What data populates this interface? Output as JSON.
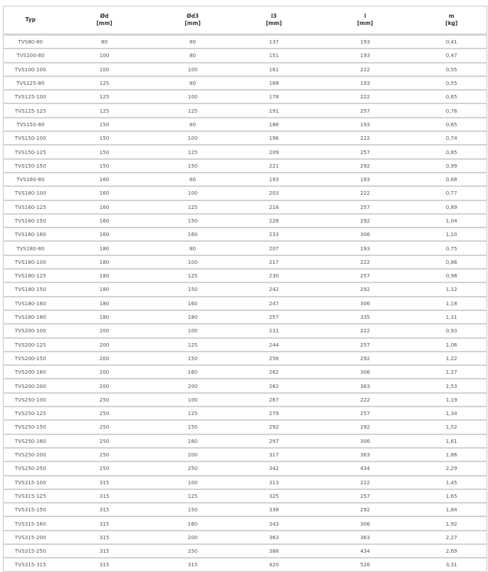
{
  "table": {
    "headers": [
      {
        "name": "Typ",
        "unit": ""
      },
      {
        "name": "Ød",
        "unit": "[mm]"
      },
      {
        "name": "Ød3",
        "unit": "[mm]"
      },
      {
        "name": "l3",
        "unit": "[mm]"
      },
      {
        "name": "l",
        "unit": "[mm]"
      },
      {
        "name": "m",
        "unit": "[kg]"
      }
    ],
    "rows": [
      [
        "TVS80-80",
        "80",
        "80",
        "137",
        "193",
        "0,41"
      ],
      [
        "TVS100-80",
        "100",
        "80",
        "151",
        "193",
        "0,47"
      ],
      [
        "TVS100-100",
        "100",
        "100",
        "161",
        "222",
        "0,55"
      ],
      [
        "TVS125-80",
        "125",
        "80",
        "168",
        "193",
        "0,55"
      ],
      [
        "TVS125-100",
        "125",
        "100",
        "178",
        "222",
        "0,65"
      ],
      [
        "TVS125-125",
        "125",
        "125",
        "191",
        "257",
        "0,76"
      ],
      [
        "TVS150-80",
        "150",
        "80",
        "186",
        "193",
        "0,65"
      ],
      [
        "TVS150-100",
        "150",
        "100",
        "196",
        "222",
        "0,74"
      ],
      [
        "TVS150-125",
        "150",
        "125",
        "209",
        "257",
        "0,85"
      ],
      [
        "TVS150-150",
        "150",
        "150",
        "221",
        "292",
        "0,99"
      ],
      [
        "TVS160-80",
        "160",
        "80",
        "193",
        "193",
        "0,68"
      ],
      [
        "TVS160-100",
        "160",
        "100",
        "203",
        "222",
        "0,77"
      ],
      [
        "TVS160-125",
        "160",
        "125",
        "216",
        "257",
        "0,89"
      ],
      [
        "TVS160-150",
        "160",
        "150",
        "228",
        "292",
        "1,04"
      ],
      [
        "TVS160-160",
        "160",
        "160",
        "233",
        "306",
        "1,10"
      ],
      [
        "TVS180-80",
        "180",
        "80",
        "207",
        "193",
        "0,75"
      ],
      [
        "TVS180-100",
        "180",
        "100",
        "217",
        "222",
        "0,86"
      ],
      [
        "TVS180-125",
        "180",
        "125",
        "230",
        "257",
        "0,98"
      ],
      [
        "TVS180-150",
        "180",
        "150",
        "242",
        "292",
        "1,12"
      ],
      [
        "TVS180-160",
        "180",
        "160",
        "247",
        "306",
        "1,18"
      ],
      [
        "TVS180-180",
        "180",
        "180",
        "257",
        "335",
        "1,31"
      ],
      [
        "TVS200-100",
        "200",
        "100",
        "231",
        "222",
        "0,93"
      ],
      [
        "TVS200-125",
        "200",
        "125",
        "244",
        "257",
        "1,06"
      ],
      [
        "TVS200-150",
        "200",
        "150",
        "256",
        "292",
        "1,22"
      ],
      [
        "TVS200-160",
        "200",
        "160",
        "262",
        "306",
        "1,27"
      ],
      [
        "TVS200-200",
        "200",
        "200",
        "282",
        "363",
        "1,53"
      ],
      [
        "TVS250-100",
        "250",
        "100",
        "267",
        "222",
        "1,19"
      ],
      [
        "TVS250-125",
        "250",
        "125",
        "279",
        "257",
        "1,34"
      ],
      [
        "TVS250-150",
        "250",
        "150",
        "292",
        "292",
        "1,52"
      ],
      [
        "TVS250-160",
        "250",
        "160",
        "297",
        "306",
        "1,61"
      ],
      [
        "TVS250-200",
        "250",
        "200",
        "317",
        "363",
        "1,86"
      ],
      [
        "TVS250-250",
        "250",
        "250",
        "342",
        "434",
        "2,29"
      ],
      [
        "TVS315-100",
        "315",
        "100",
        "313",
        "222",
        "1,45"
      ],
      [
        "TVS315-125",
        "315",
        "125",
        "325",
        "257",
        "1,65"
      ],
      [
        "TVS315-150",
        "315",
        "150",
        "338",
        "292",
        "1,84"
      ],
      [
        "TVS315-160",
        "315",
        "160",
        "343",
        "306",
        "1,92"
      ],
      [
        "TVS315-200",
        "315",
        "200",
        "363",
        "363",
        "2,27"
      ],
      [
        "TVS315-250",
        "315",
        "250",
        "388",
        "434",
        "2,69"
      ],
      [
        "TVS315-315",
        "315",
        "315",
        "420",
        "526",
        "3,31"
      ]
    ]
  }
}
